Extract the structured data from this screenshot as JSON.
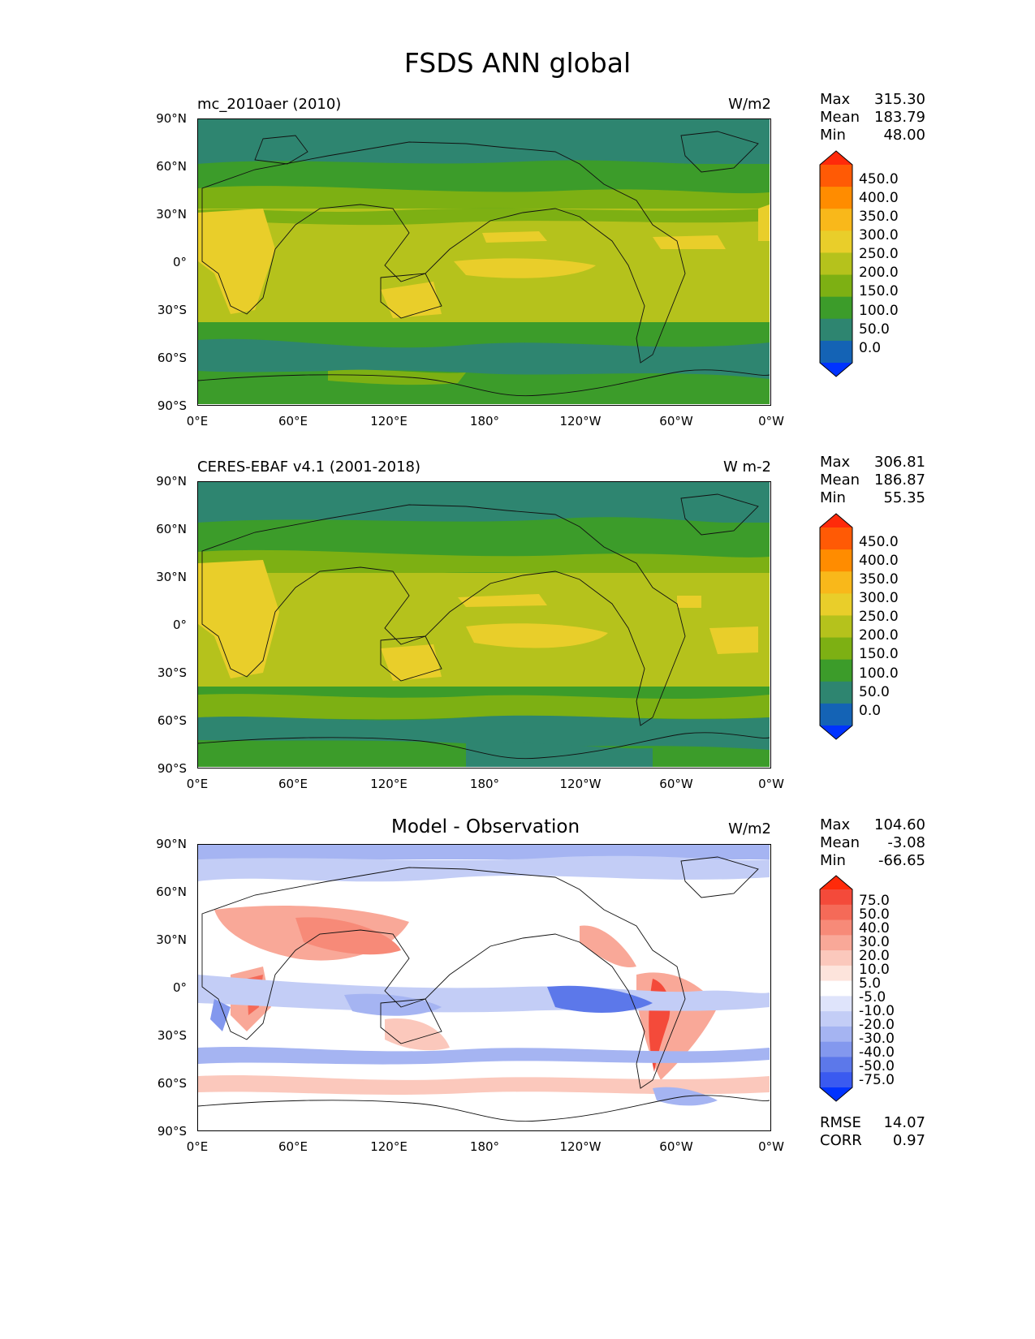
{
  "figure": {
    "title": "FSDS ANN global"
  },
  "axes": {
    "lat_ticks": [
      "90°N",
      "60°N",
      "30°N",
      "0°",
      "30°S",
      "60°S",
      "90°S"
    ],
    "lon_ticks": [
      "0°E",
      "60°E",
      "120°E",
      "180°",
      "120°W",
      "60°W",
      "0°W"
    ]
  },
  "panels": [
    {
      "label": "mc_2010aer (2010)",
      "units": "W/m2",
      "stats": {
        "max_label": "Max",
        "max": "315.30",
        "mean_label": "Mean",
        "mean": "183.79",
        "min_label": "Min",
        "min": "48.00"
      },
      "colorbar": {
        "labels": [
          "450.0",
          "400.0",
          "350.0",
          "300.0",
          "250.0",
          "200.0",
          "150.0",
          "100.0",
          "50.0",
          "0.0"
        ],
        "colors": [
          "#ff2a0a",
          "#ff5a05",
          "#ff8c00",
          "#f9b81a",
          "#e9ce2a",
          "#b5c21c",
          "#7db013",
          "#3c9c2a",
          "#2e8570",
          "#1463b5",
          "#0033ff"
        ]
      }
    },
    {
      "label": "CERES-EBAF v4.1 (2001-2018)",
      "units": "W m-2",
      "stats": {
        "max_label": "Max",
        "max": "306.81",
        "mean_label": "Mean",
        "mean": "186.87",
        "min_label": "Min",
        "min": "55.35"
      },
      "colorbar": {
        "labels": [
          "450.0",
          "400.0",
          "350.0",
          "300.0",
          "250.0",
          "200.0",
          "150.0",
          "100.0",
          "50.0",
          "0.0"
        ],
        "colors": [
          "#ff2a0a",
          "#ff5a05",
          "#ff8c00",
          "#f9b81a",
          "#e9ce2a",
          "#b5c21c",
          "#7db013",
          "#3c9c2a",
          "#2e8570",
          "#1463b5",
          "#0033ff"
        ]
      }
    },
    {
      "label": "Model - Observation",
      "units": "W/m2",
      "stats": {
        "max_label": "Max",
        "max": "104.60",
        "mean_label": "Mean",
        "mean": "-3.08",
        "min_label": "Min",
        "min": "-66.65"
      },
      "colorbar": {
        "labels": [
          "75.0",
          "50.0",
          "40.0",
          "30.0",
          "20.0",
          "10.0",
          "5.0",
          "-5.0",
          "-10.0",
          "-20.0",
          "-30.0",
          "-40.0",
          "-50.0",
          "-75.0"
        ],
        "colors": [
          "#ff2a0a",
          "#f44a3a",
          "#f56a58",
          "#f78a78",
          "#f9a898",
          "#fbc8bc",
          "#fde4dc",
          "#ffffff",
          "#dfe4fb",
          "#c3cdf6",
          "#a5b4f2",
          "#8398ee",
          "#5c78ea",
          "#3a5af0",
          "#0033ff"
        ]
      },
      "metrics": {
        "rmse_label": "RMSE",
        "rmse": "14.07",
        "corr_label": "CORR",
        "corr": "0.97"
      }
    }
  ]
}
